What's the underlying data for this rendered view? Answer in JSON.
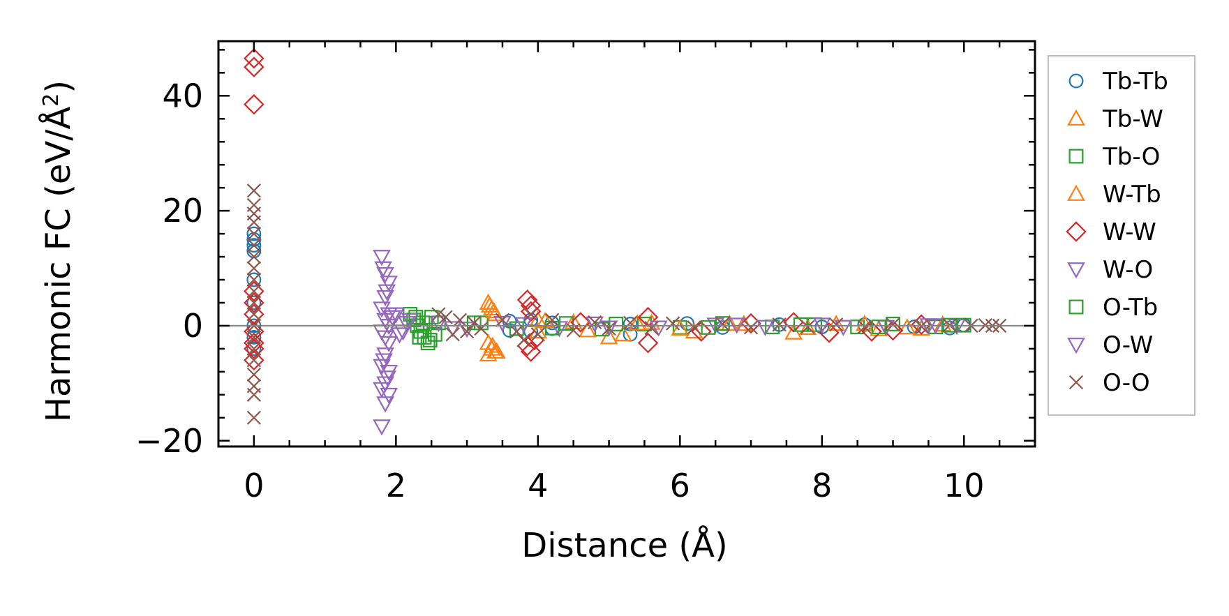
{
  "chart_data": {
    "type": "scatter",
    "xlabel": "Distance (Å)",
    "ylabel": "Harmonic FC (eV/Å²)",
    "ylabel_parts": {
      "main": "Harmonic FC (eV/Å",
      "sup": "2",
      "close": ")"
    },
    "xlim": [
      -0.5,
      11.0
    ],
    "ylim": [
      -21.0,
      49.5
    ],
    "x_ticks": [
      0,
      2,
      4,
      6,
      8,
      10
    ],
    "x_tick_labels": [
      "0",
      "2",
      "4",
      "6",
      "8",
      "10"
    ],
    "y_ticks": [
      -20,
      0,
      20,
      40
    ],
    "y_tick_labels": [
      "−20",
      "0",
      "20",
      "40"
    ],
    "zero_line": true,
    "grid": false,
    "legend_position": "outside-right",
    "series": [
      {
        "name": "Tb-Tb",
        "marker": "circle",
        "color": "#1f77b4",
        "points": [
          [
            0,
            16
          ],
          [
            0,
            15
          ],
          [
            0,
            14
          ],
          [
            0,
            13
          ],
          [
            0,
            8
          ],
          [
            0,
            4
          ],
          [
            0,
            0
          ],
          [
            0,
            -2
          ],
          [
            0,
            -4
          ],
          [
            3.6,
            0.8
          ],
          [
            3.6,
            -0.8
          ],
          [
            3.9,
            1
          ],
          [
            3.9,
            -1
          ],
          [
            4.2,
            0.5
          ],
          [
            4.2,
            -0.5
          ],
          [
            5.3,
            0.3
          ],
          [
            5.3,
            -1.5
          ],
          [
            6.1,
            0.4
          ],
          [
            6.6,
            -0.3
          ],
          [
            7.4,
            0.2
          ],
          [
            8.0,
            -0.2
          ],
          [
            8.6,
            0.2
          ],
          [
            9.3,
            -0.2
          ],
          [
            9.8,
            -0.4
          ],
          [
            10.0,
            0.1
          ]
        ]
      },
      {
        "name": "Tb-W",
        "marker": "triangle-up",
        "color": "#ff7f0e",
        "points": [
          [
            3.3,
            4
          ],
          [
            3.35,
            3
          ],
          [
            3.4,
            2
          ],
          [
            3.3,
            -3
          ],
          [
            3.35,
            -4
          ],
          [
            3.3,
            -5
          ],
          [
            3.4,
            -4.5
          ],
          [
            4.0,
            1
          ],
          [
            4.0,
            -1
          ],
          [
            4.5,
            0.6
          ],
          [
            5.0,
            -2
          ],
          [
            5.2,
            -1.5
          ],
          [
            5.6,
            0.5
          ],
          [
            6.2,
            -1
          ],
          [
            6.7,
            0.3
          ],
          [
            7.6,
            -1.2
          ],
          [
            8.2,
            0.3
          ],
          [
            8.8,
            -0.6
          ],
          [
            9.4,
            -0.5
          ],
          [
            9.7,
            0.2
          ]
        ]
      },
      {
        "name": "Tb-O",
        "marker": "square",
        "color": "#2ca02c",
        "points": [
          [
            2.2,
            2
          ],
          [
            2.25,
            1
          ],
          [
            2.3,
            0
          ],
          [
            2.35,
            -1
          ],
          [
            2.4,
            -2
          ],
          [
            2.45,
            -3
          ],
          [
            2.5,
            1.5
          ],
          [
            2.55,
            -1.5
          ],
          [
            2.6,
            0.5
          ],
          [
            3.2,
            0.5
          ],
          [
            3.7,
            -0.5
          ],
          [
            4.4,
            0.4
          ],
          [
            4.9,
            -0.6
          ],
          [
            5.5,
            0.3
          ],
          [
            6.0,
            -0.3
          ],
          [
            6.6,
            0.4
          ],
          [
            7.3,
            -0.2
          ],
          [
            7.9,
            0.2
          ],
          [
            8.5,
            -0.2
          ],
          [
            9.0,
            0.3
          ],
          [
            9.6,
            -0.2
          ],
          [
            10.0,
            0.1
          ]
        ]
      },
      {
        "name": "W-Tb",
        "marker": "triangle-up",
        "color": "#ff7f0e",
        "points": [
          [
            3.32,
            3.5
          ],
          [
            3.38,
            2.5
          ],
          [
            3.36,
            -3.5
          ],
          [
            3.42,
            -4.5
          ],
          [
            4.1,
            0.8
          ],
          [
            4.7,
            -0.8
          ],
          [
            5.4,
            0.4
          ],
          [
            6.0,
            -0.5
          ],
          [
            6.9,
            0.3
          ],
          [
            7.8,
            -0.4
          ],
          [
            8.6,
            0.3
          ],
          [
            9.2,
            -0.3
          ]
        ]
      },
      {
        "name": "W-W",
        "marker": "diamond",
        "color": "#d62728",
        "points": [
          [
            0,
            46.5
          ],
          [
            0,
            45
          ],
          [
            0,
            38.5
          ],
          [
            0,
            6
          ],
          [
            0,
            4
          ],
          [
            0,
            2
          ],
          [
            0,
            -1
          ],
          [
            0,
            -3
          ],
          [
            0,
            -4
          ],
          [
            0,
            -6
          ],
          [
            3.85,
            4.5
          ],
          [
            3.9,
            3.5
          ],
          [
            3.9,
            2.5
          ],
          [
            3.85,
            -3.5
          ],
          [
            3.9,
            -4.5
          ],
          [
            3.95,
            -2.5
          ],
          [
            4.6,
            0.6
          ],
          [
            5.55,
            1.5
          ],
          [
            5.55,
            -3
          ],
          [
            6.3,
            -1
          ],
          [
            7.0,
            0.4
          ],
          [
            7.6,
            0.6
          ],
          [
            8.1,
            -1.2
          ],
          [
            8.7,
            -1
          ],
          [
            9.0,
            -0.8
          ],
          [
            9.4,
            0.2
          ]
        ]
      },
      {
        "name": "W-O",
        "marker": "triangle-down",
        "color": "#9467bd",
        "points": [
          [
            1.8,
            12
          ],
          [
            1.85,
            9
          ],
          [
            1.9,
            7.5
          ],
          [
            1.85,
            5
          ],
          [
            1.8,
            3
          ],
          [
            1.9,
            2
          ],
          [
            1.85,
            1
          ],
          [
            1.9,
            0
          ],
          [
            1.8,
            -1
          ],
          [
            1.85,
            -2
          ],
          [
            1.9,
            -3
          ],
          [
            1.85,
            -5
          ],
          [
            1.8,
            -7
          ],
          [
            1.9,
            -8
          ],
          [
            1.85,
            -10
          ],
          [
            1.8,
            -11
          ],
          [
            1.9,
            -12
          ],
          [
            1.85,
            -13.5
          ],
          [
            1.8,
            -17.5
          ],
          [
            2.0,
            2
          ],
          [
            2.1,
            -1
          ],
          [
            2.2,
            1
          ],
          [
            2.6,
            0.5
          ],
          [
            3.0,
            -0.5
          ],
          [
            3.5,
            0.5
          ],
          [
            4.3,
            -0.4
          ],
          [
            4.8,
            0.4
          ],
          [
            5.7,
            -0.3
          ],
          [
            6.5,
            0.2
          ],
          [
            7.2,
            -0.2
          ],
          [
            8.0,
            0.2
          ],
          [
            8.9,
            -0.2
          ],
          [
            9.6,
            0.1
          ],
          [
            9.9,
            0.0
          ]
        ]
      },
      {
        "name": "O-Tb",
        "marker": "square",
        "color": "#2ca02c",
        "points": [
          [
            2.28,
            1.5
          ],
          [
            2.33,
            -2
          ],
          [
            2.38,
            0.5
          ],
          [
            2.48,
            -2.5
          ],
          [
            3.1,
            0.5
          ],
          [
            4.2,
            -0.4
          ],
          [
            5.1,
            0.3
          ],
          [
            6.4,
            -0.3
          ],
          [
            7.7,
            0.2
          ],
          [
            8.8,
            -0.2
          ],
          [
            9.8,
            0.1
          ]
        ]
      },
      {
        "name": "O-W",
        "marker": "triangle-down",
        "color": "#9467bd",
        "points": [
          [
            1.82,
            10
          ],
          [
            1.87,
            6
          ],
          [
            1.83,
            -6
          ],
          [
            1.88,
            -9
          ],
          [
            1.95,
            1.5
          ],
          [
            2.05,
            -1.5
          ],
          [
            2.15,
            0.5
          ],
          [
            2.8,
            -0.4
          ],
          [
            3.8,
            0.3
          ],
          [
            5.0,
            -0.3
          ],
          [
            6.8,
            0.2
          ],
          [
            8.3,
            -0.2
          ],
          [
            9.5,
            0.1
          ]
        ]
      },
      {
        "name": "O-O",
        "marker": "x",
        "color": "#8c564b",
        "points": [
          [
            0,
            23.5
          ],
          [
            0,
            21
          ],
          [
            0,
            19.5
          ],
          [
            0,
            18
          ],
          [
            0,
            16
          ],
          [
            0,
            14
          ],
          [
            0,
            12
          ],
          [
            0,
            10
          ],
          [
            0,
            8
          ],
          [
            0,
            6
          ],
          [
            0,
            4
          ],
          [
            0,
            2
          ],
          [
            0,
            0
          ],
          [
            0,
            -2
          ],
          [
            0,
            -4
          ],
          [
            0,
            -6
          ],
          [
            0,
            -8.5
          ],
          [
            0,
            -10.5
          ],
          [
            0,
            -12
          ],
          [
            0,
            -16
          ],
          [
            2.6,
            2
          ],
          [
            2.7,
            1.5
          ],
          [
            2.8,
            -1.5
          ],
          [
            2.9,
            1
          ],
          [
            3.0,
            -1
          ],
          [
            3.1,
            0.5
          ],
          [
            3.2,
            -0.5
          ],
          [
            3.5,
            1
          ],
          [
            3.7,
            -1
          ],
          [
            3.8,
            -2.5
          ],
          [
            3.9,
            2
          ],
          [
            4.0,
            -1.5
          ],
          [
            4.2,
            1
          ],
          [
            4.5,
            -0.8
          ],
          [
            4.8,
            0.6
          ],
          [
            5.0,
            -0.5
          ],
          [
            5.3,
            0.5
          ],
          [
            5.6,
            -0.4
          ],
          [
            5.9,
            0.4
          ],
          [
            6.2,
            -0.3
          ],
          [
            6.6,
            0.3
          ],
          [
            7.0,
            -0.3
          ],
          [
            7.4,
            0.2
          ],
          [
            7.8,
            -0.2
          ],
          [
            8.2,
            0.2
          ],
          [
            8.6,
            -0.2
          ],
          [
            9.0,
            0.2
          ],
          [
            9.4,
            -0.1
          ],
          [
            9.8,
            0.1
          ],
          [
            10.1,
            0.0
          ],
          [
            10.3,
            0.1
          ],
          [
            10.4,
            0.0
          ],
          [
            10.5,
            0.0
          ]
        ]
      }
    ]
  }
}
